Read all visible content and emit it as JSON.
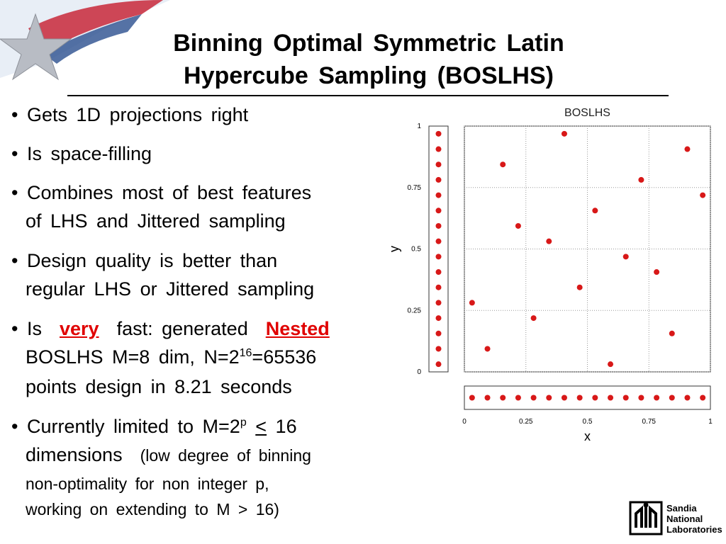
{
  "title": [
    "Binning Optimal Symmetric Latin",
    "Hypercube Sampling (BOSLHS)"
  ],
  "bullets": [
    [
      "Gets 1D projections right"
    ],
    [
      "Is space-filling"
    ],
    [
      "Combines most of best features",
      "of LHS and Jittered sampling"
    ],
    [
      "Design quality is better than",
      "regular LHS or Jittered sampling"
    ],
    [
      "Is",
      "very",
      "fast: generated",
      "Nested",
      "BOSLHS M=8 dim, N=2",
      "16",
      "=65536",
      "points design in 8.21 seconds"
    ],
    [
      "Currently limited to M=2",
      "p",
      "<",
      "16",
      "dimensions",
      "(low degree of binning",
      "non-optimality for non integer p,",
      "working on extending to M > 16)"
    ]
  ],
  "logo": [
    "Sandia",
    "National",
    "Laboratories"
  ],
  "chart_data": {
    "type": "scatter",
    "title": "BOSLHS",
    "x_label": "x",
    "y_label": "y",
    "color": "#d81818",
    "grid": true,
    "xlim": [
      0,
      1
    ],
    "ylim": [
      0,
      1
    ],
    "xticks": [
      0,
      0.25,
      0.5,
      0.75,
      1
    ],
    "yticks": [
      0,
      0.25,
      0.5,
      0.75,
      1
    ],
    "x": [
      0.40625,
      0.90625,
      0.15625,
      0.71875,
      0.96875,
      0.53125,
      0.21875,
      0.34375,
      0.65625,
      0.78125,
      0.46875,
      0.03125,
      0.28125,
      0.84375,
      0.09375,
      0.59375
    ],
    "y": [
      0.96875,
      0.90625,
      0.84375,
      0.78125,
      0.71875,
      0.65625,
      0.59375,
      0.53125,
      0.46875,
      0.40625,
      0.34375,
      0.28125,
      0.21875,
      0.15625,
      0.09375,
      0.03125
    ]
  }
}
